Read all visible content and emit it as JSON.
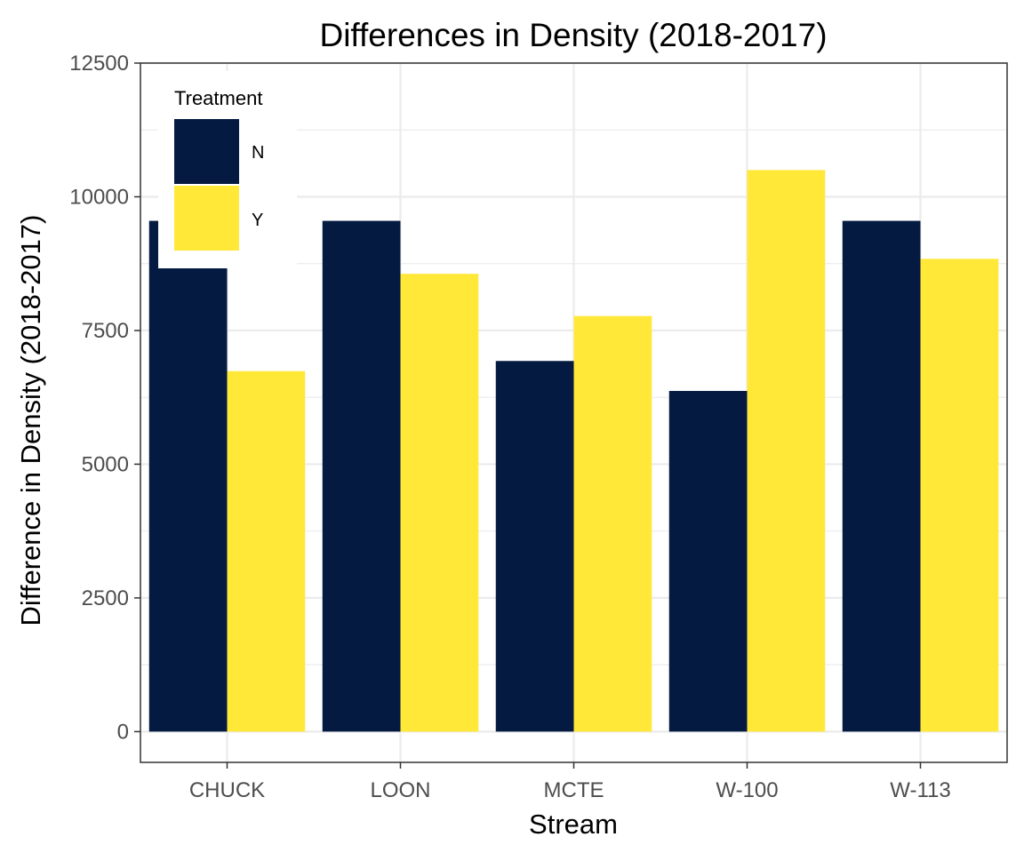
{
  "chart_data": {
    "type": "bar",
    "title": "Differences in Density (2018-2017)",
    "xlabel": "Stream",
    "ylabel": "Difference in Density (2018-2017)",
    "categories": [
      "CHUCK",
      "LOON",
      "MCTE",
      "W-100",
      "W-113"
    ],
    "series": [
      {
        "name": "N",
        "values": [
          9550,
          9550,
          6930,
          6370,
          9550
        ]
      },
      {
        "name": "Y",
        "values": [
          6740,
          8560,
          7770,
          10500,
          8840
        ]
      }
    ],
    "ylim": [
      -575,
      12500
    ],
    "yticks": [
      0,
      2500,
      5000,
      7500,
      10000,
      12500
    ],
    "ytick_labels": [
      "0",
      "2500",
      "5000",
      "7500",
      "10000",
      "12500"
    ],
    "grid": true,
    "legend": {
      "title": "Treatment",
      "placement": "top-left inside"
    },
    "colors": {
      "N": "#041a40",
      "Y": "#ffe838",
      "grid": "#ebebeb",
      "panel_border": "#333333"
    }
  }
}
